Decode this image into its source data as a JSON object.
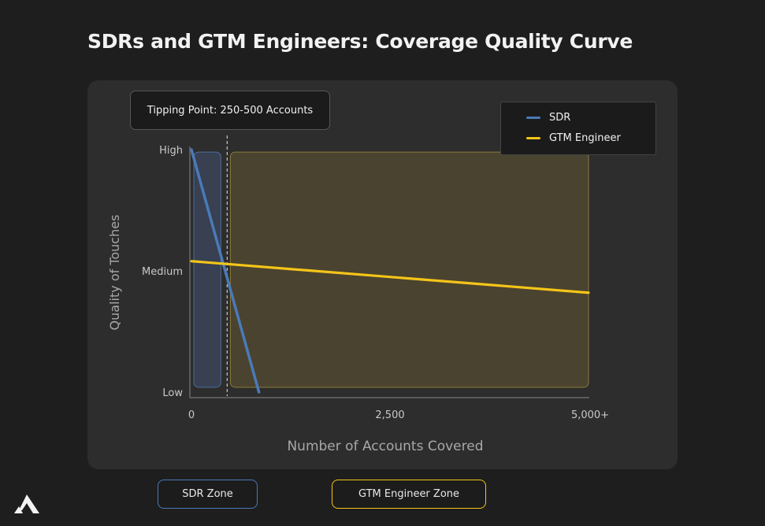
{
  "title": "SDRs and GTM Engineers: Coverage Quality Curve",
  "tipping_point_label": "Tipping Point: 250-500 Accounts",
  "zone_buttons": {
    "sdr": "SDR Zone",
    "gtm": "GTM Engineer Zone"
  },
  "colors": {
    "sdr": "#4a7ab8",
    "gtm": "#f5c518",
    "sdr_zone_fill": "#3a4355",
    "gtm_zone_fill": "#4a4330",
    "gtm_zone_border": "#8a7a3a",
    "sdr_zone_border": "#4d6ea0"
  },
  "logo_icon": "mountain-logo-icon",
  "chart_data": {
    "type": "line",
    "title": "SDRs and GTM Engineers: Coverage Quality Curve",
    "xlabel": "Number of Accounts Covered",
    "ylabel": "Quality of Touches",
    "xlim": [
      0,
      5000
    ],
    "ylim": [
      0,
      100
    ],
    "x_ticks": [
      {
        "value": 0,
        "label": "0"
      },
      {
        "value": 2500,
        "label": "2,500"
      },
      {
        "value": 5000,
        "label": "5,000+"
      }
    ],
    "y_ticks": [
      {
        "value": 0,
        "label": "Low"
      },
      {
        "value": 50,
        "label": "Medium"
      },
      {
        "value": 100,
        "label": "High"
      }
    ],
    "series": [
      {
        "name": "SDR",
        "x": [
          0,
          850
        ],
        "y": [
          100,
          0
        ]
      },
      {
        "name": "GTM Engineer",
        "x": [
          0,
          5000
        ],
        "y": [
          54,
          41
        ]
      }
    ],
    "tipping_point_x": 450,
    "zones": [
      {
        "name": "SDR Zone",
        "x": [
          30,
          370
        ],
        "y": [
          2,
          99
        ]
      },
      {
        "name": "GTM Engineer Zone",
        "x": [
          490,
          5000
        ],
        "y": [
          2,
          99
        ]
      }
    ],
    "legend": "top-right"
  }
}
